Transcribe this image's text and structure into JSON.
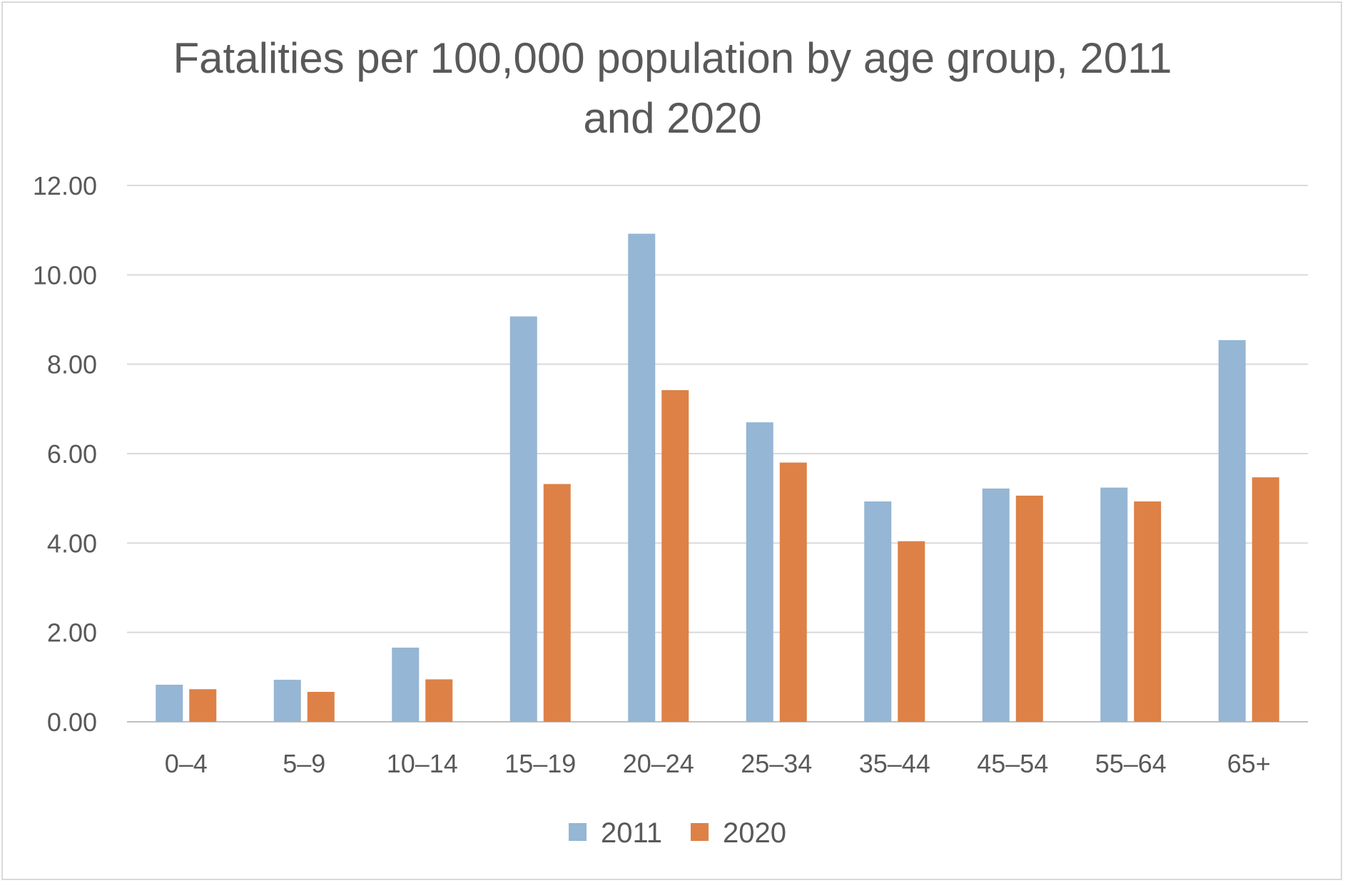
{
  "chart_data": {
    "type": "bar",
    "title_line1": "Fatalities per 100,000 population by age group, 2011",
    "title_line2": "and 2020",
    "xlabel": "",
    "ylabel": "",
    "ylim": [
      0,
      12
    ],
    "yticks": [
      "0.00",
      "2.00",
      "4.00",
      "6.00",
      "8.00",
      "10.00",
      "12.00"
    ],
    "grid": true,
    "legend_position": "bottom",
    "categories": [
      "0–4",
      "5–9",
      "10–14",
      "15–19",
      "20–24",
      "25–34",
      "35–44",
      "45–54",
      "55–64",
      "65+"
    ],
    "series": [
      {
        "name": "2011",
        "color": "#95b6d4",
        "values": [
          0.83,
          0.94,
          1.66,
          9.07,
          10.92,
          6.7,
          4.93,
          5.22,
          5.24,
          8.54
        ]
      },
      {
        "name": "2020",
        "color": "#dd8147",
        "values": [
          0.73,
          0.67,
          0.95,
          5.32,
          7.42,
          5.8,
          4.04,
          5.06,
          4.93,
          5.47
        ]
      }
    ]
  }
}
